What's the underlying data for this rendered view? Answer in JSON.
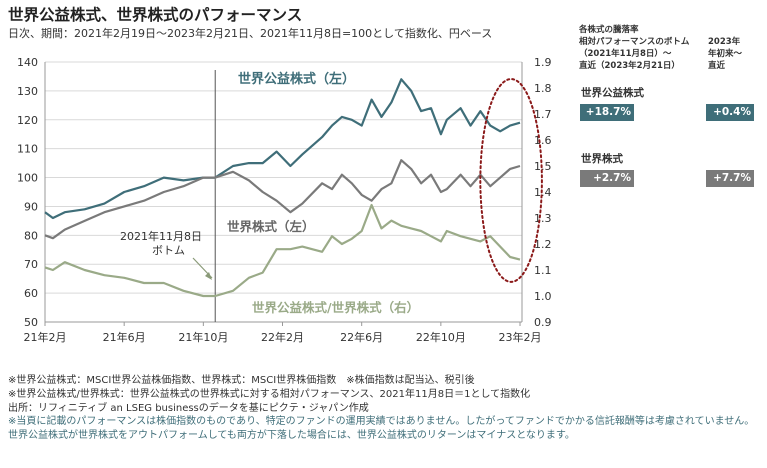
{
  "title": "世界公益株式、世界株式のパフォーマンス",
  "subtitle": "日次、期間：2021年2月19日～2023年2月21日、2021年11月8日=100として指数化、円ベース",
  "side_panel": {
    "header_left": [
      "各株式の騰落率",
      "相対パフォーマンスのボトム",
      "（2021年11月8日）～",
      "直近（2023年2月21日）"
    ],
    "header_right": [
      "2023年",
      "年初来～",
      "直近"
    ],
    "rows": [
      {
        "label": "世界公益株式",
        "bottom_to_latest": "+18.7%",
        "ytd": "+0.4%",
        "color": "#3f6e79"
      },
      {
        "label": "世界株式",
        "bottom_to_latest": "+2.7%",
        "ytd": "+7.7%",
        "color": "#7a7a7a"
      }
    ]
  },
  "notes": [
    "※世界公益株式：MSCI世界公益株価指数、世界株式：MSCI世界株価指数　※株価指数は配当込、税引後",
    "※世界公益株式/世界株式：世界公益株式の世界株式に対する相対パフォーマンス、2021年11月8日＝1として指数化",
    "出所：リフィニティブ an LSEG businessのデータを基にピクテ・ジャパン作成"
  ],
  "disclaimer": "※当頁に記載のパフォーマンスは株価指数のものであり、特定のファンドの運用実績ではありません。したがってファンドでかかる信託報酬等は考慮されていません。世界公益株式が世界株式をアウトパフォームしても両方が下落した場合には、世界公益株式のリターンはマイナスとなります。",
  "chart_data": {
    "type": "line",
    "x_ticks": [
      "21年2月",
      "21年6月",
      "21年10月",
      "22年2月",
      "22年6月",
      "22年10月",
      "23年2月"
    ],
    "x_tick_months": [
      0,
      4,
      8,
      12,
      16,
      20,
      24
    ],
    "x_range_months": [
      0,
      24.1
    ],
    "left_axis": {
      "ylim": [
        50,
        140
      ],
      "ticks": [
        50,
        60,
        70,
        80,
        90,
        100,
        110,
        120,
        130,
        140
      ]
    },
    "right_axis": {
      "ylim": [
        0.9,
        1.9
      ],
      "ticks": [
        "0.9",
        "1.0",
        "1.1",
        "1.2",
        "1.3",
        "1.4",
        "1.5",
        "1.6",
        "1.7",
        "1.8",
        "1.9"
      ]
    },
    "reference_line_month": 8.6,
    "series": [
      {
        "name": "世界公益株式（左）",
        "axis": "left",
        "color": "#3f6e79",
        "x": [
          0,
          0.4,
          1,
          2,
          3,
          4,
          5,
          6,
          7,
          8,
          8.6,
          9.5,
          10.3,
          11,
          11.7,
          12.4,
          13,
          14,
          14.5,
          15,
          15.5,
          16,
          16.5,
          17,
          17.5,
          18,
          18.5,
          19,
          19.5,
          20,
          20.3,
          21,
          21.5,
          22,
          22.5,
          23,
          23.5,
          24
        ],
        "values": [
          88,
          86,
          88,
          89,
          91,
          95,
          97,
          100,
          99,
          100,
          100,
          104,
          105,
          105,
          109,
          104,
          108,
          114,
          118,
          121,
          120,
          118,
          127,
          121,
          126,
          134,
          130,
          123,
          124,
          115,
          120,
          124,
          118,
          123,
          118,
          116,
          118,
          119
        ]
      },
      {
        "name": "世界株式（左）",
        "axis": "left",
        "color": "#7a7a7a",
        "x": [
          0,
          0.4,
          1,
          2,
          3,
          4,
          5,
          6,
          7,
          8,
          8.6,
          9.5,
          10.3,
          11,
          11.7,
          12.4,
          13,
          14,
          14.5,
          15,
          15.5,
          16,
          16.5,
          17,
          17.5,
          18,
          18.5,
          19,
          19.5,
          20,
          20.3,
          21,
          21.5,
          22,
          22.5,
          23,
          23.5,
          24
        ],
        "values": [
          80,
          79,
          82,
          85,
          88,
          90,
          92,
          95,
          97,
          100,
          100,
          102,
          99,
          95,
          92,
          88,
          91,
          98,
          96,
          101,
          98,
          94,
          92,
          96,
          98,
          106,
          103,
          98,
          101,
          95,
          96,
          101,
          97,
          101,
          97,
          100,
          103,
          104
        ]
      },
      {
        "name": "世界公益株式/世界株式（右）",
        "axis": "right",
        "color": "#9aaa88",
        "x": [
          0,
          0.4,
          1,
          2,
          3,
          4,
          5,
          6,
          7,
          8,
          8.6,
          9.5,
          10.3,
          11,
          11.7,
          12.4,
          13,
          14,
          14.5,
          15,
          15.5,
          16,
          16.5,
          17,
          17.5,
          18,
          18.5,
          19,
          19.5,
          20,
          20.3,
          21,
          21.5,
          22,
          22.5,
          23,
          23.5,
          24
        ],
        "values": [
          1.11,
          1.1,
          1.13,
          1.1,
          1.08,
          1.07,
          1.05,
          1.05,
          1.02,
          1.0,
          1.0,
          1.02,
          1.07,
          1.09,
          1.18,
          1.18,
          1.19,
          1.17,
          1.23,
          1.2,
          1.22,
          1.25,
          1.35,
          1.26,
          1.29,
          1.27,
          1.26,
          1.25,
          1.23,
          1.21,
          1.25,
          1.23,
          1.22,
          1.21,
          1.23,
          1.19,
          1.15,
          1.14
        ]
      }
    ],
    "annotations": [
      {
        "text": "世界公益株式（左）",
        "color": "#3f6e79"
      },
      {
        "text": "世界株式（左）",
        "color": "#666666"
      },
      {
        "text": "世界公益株式/世界株式（右）",
        "color": "#9aaa88"
      },
      {
        "text_lines": [
          "2021年11月8日",
          "ボトム"
        ],
        "color": "#333333"
      }
    ],
    "highlight_ellipse": {
      "color": "#8b1a1a",
      "style": "dotted"
    },
    "grid": true
  }
}
